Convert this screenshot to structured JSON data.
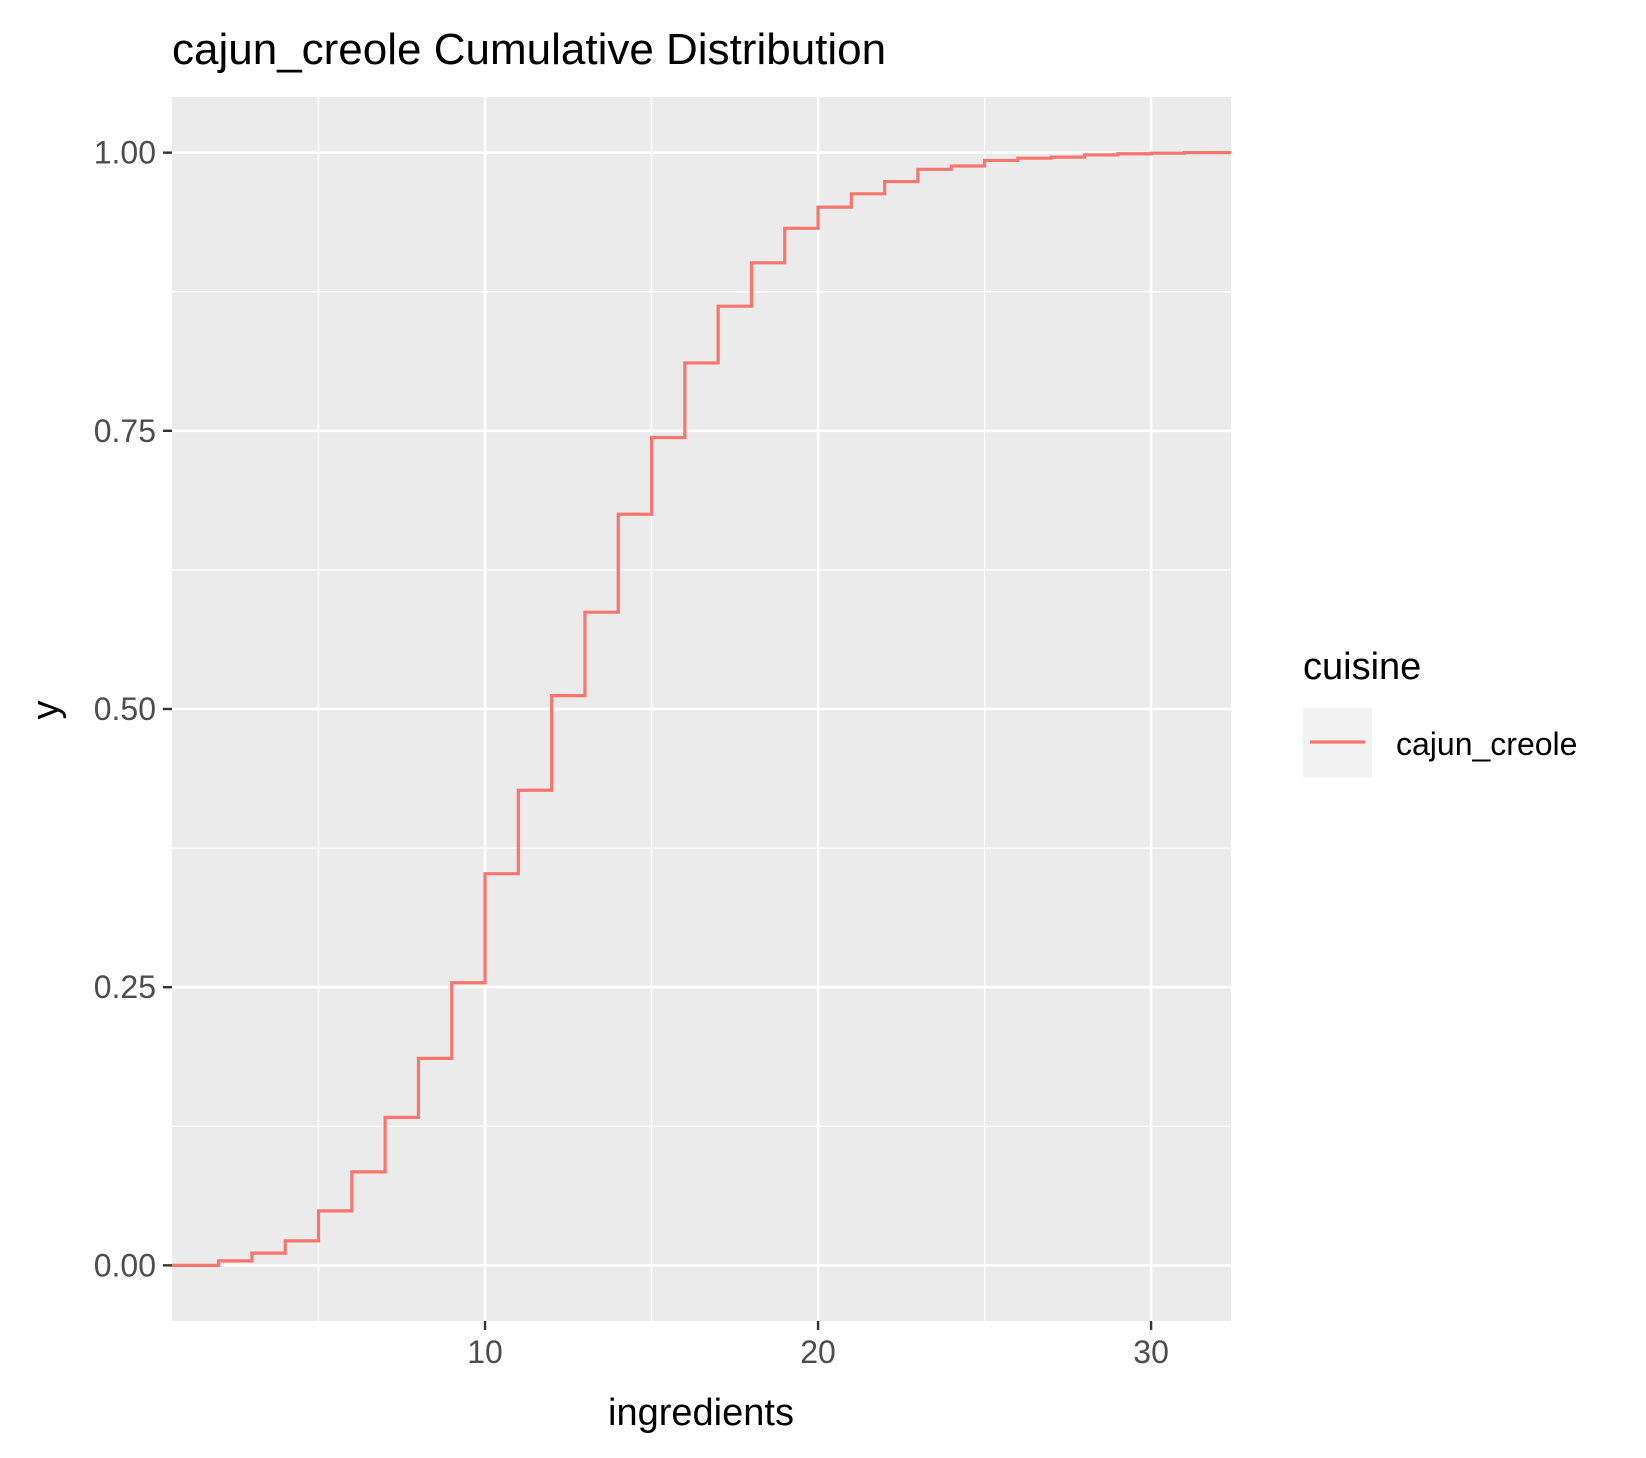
{
  "chart_data": {
    "type": "line",
    "subtype": "step",
    "title": "cajun_creole Cumulative Distribution",
    "xlabel": "ingredients",
    "ylabel": "y",
    "xlim": [
      0.6,
      32.4
    ],
    "ylim": [
      -0.05,
      1.05
    ],
    "x_ticks": [
      10,
      20,
      30
    ],
    "x_tick_labels": [
      "10",
      "20",
      "30"
    ],
    "y_ticks": [
      0,
      0.25,
      0.5,
      0.75,
      1
    ],
    "y_tick_labels": [
      "0.00",
      "0.25",
      "0.50",
      "0.75",
      "1.00"
    ],
    "grid": true,
    "legend": {
      "title": "cuisine",
      "position": "right"
    },
    "series": [
      {
        "name": "cajun_creole",
        "color": "#F8766D",
        "x": [
          2,
          3,
          4,
          5,
          6,
          7,
          8,
          9,
          10,
          11,
          12,
          13,
          14,
          15,
          16,
          17,
          18,
          19,
          20,
          21,
          22,
          23,
          24,
          25,
          26,
          27,
          28,
          29,
          30,
          31
        ],
        "y": [
          0.004,
          0.011,
          0.022,
          0.049,
          0.084,
          0.133,
          0.186,
          0.254,
          0.352,
          0.427,
          0.512,
          0.587,
          0.675,
          0.744,
          0.811,
          0.862,
          0.901,
          0.932,
          0.951,
          0.963,
          0.974,
          0.985,
          0.988,
          0.993,
          0.995,
          0.996,
          0.998,
          0.999,
          0.9995,
          1.0
        ]
      }
    ]
  }
}
